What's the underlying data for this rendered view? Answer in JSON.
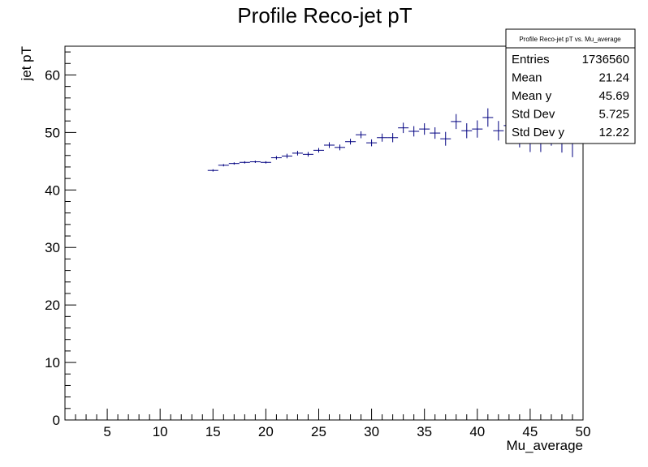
{
  "chart_data": {
    "type": "scatter",
    "title": "Profile Reco-jet pT",
    "xlabel": "Mu_average",
    "ylabel": "jet pT",
    "xlim": [
      1,
      50
    ],
    "ylim": [
      0,
      65
    ],
    "x_ticks": [
      5,
      10,
      15,
      20,
      25,
      30,
      35,
      40,
      45,
      50
    ],
    "y_ticks": [
      0,
      10,
      20,
      30,
      40,
      50,
      60
    ],
    "x_tick_labels": [
      "5",
      "10",
      "15",
      "20",
      "25",
      "30",
      "35",
      "40",
      "45",
      "50"
    ],
    "y_tick_labels": [
      "0",
      "10",
      "20",
      "30",
      "40",
      "50",
      "60"
    ],
    "grid": false,
    "series": [
      {
        "color": "#000080",
        "points": [
          {
            "x": 15.0,
            "y": 43.4,
            "err": 0.2
          },
          {
            "x": 16.0,
            "y": 44.3,
            "err": 0.2
          },
          {
            "x": 17.0,
            "y": 44.6,
            "err": 0.2
          },
          {
            "x": 18.0,
            "y": 44.8,
            "err": 0.2
          },
          {
            "x": 19.0,
            "y": 44.9,
            "err": 0.2
          },
          {
            "x": 20.0,
            "y": 44.8,
            "err": 0.2
          },
          {
            "x": 21.0,
            "y": 45.6,
            "err": 0.3
          },
          {
            "x": 22.0,
            "y": 45.9,
            "err": 0.4
          },
          {
            "x": 23.0,
            "y": 46.4,
            "err": 0.4
          },
          {
            "x": 24.0,
            "y": 46.2,
            "err": 0.4
          },
          {
            "x": 25.0,
            "y": 46.9,
            "err": 0.4
          },
          {
            "x": 26.0,
            "y": 47.8,
            "err": 0.5
          },
          {
            "x": 27.0,
            "y": 47.4,
            "err": 0.5
          },
          {
            "x": 28.0,
            "y": 48.4,
            "err": 0.5
          },
          {
            "x": 29.0,
            "y": 49.6,
            "err": 0.6
          },
          {
            "x": 30.0,
            "y": 48.2,
            "err": 0.6
          },
          {
            "x": 31.0,
            "y": 49.1,
            "err": 0.7
          },
          {
            "x": 32.0,
            "y": 49.1,
            "err": 0.8
          },
          {
            "x": 33.0,
            "y": 50.8,
            "err": 0.9
          },
          {
            "x": 34.0,
            "y": 50.2,
            "err": 0.9
          },
          {
            "x": 35.0,
            "y": 50.6,
            "err": 1.0
          },
          {
            "x": 36.0,
            "y": 49.9,
            "err": 1.0
          },
          {
            "x": 37.0,
            "y": 48.9,
            "err": 1.2
          },
          {
            "x": 38.0,
            "y": 51.9,
            "err": 1.3
          },
          {
            "x": 39.0,
            "y": 50.3,
            "err": 1.3
          },
          {
            "x": 40.0,
            "y": 50.6,
            "err": 1.5
          },
          {
            "x": 41.0,
            "y": 52.6,
            "err": 1.6
          },
          {
            "x": 42.0,
            "y": 50.3,
            "err": 1.7
          },
          {
            "x": 43.0,
            "y": 51.2,
            "err": 1.8
          },
          {
            "x": 44.0,
            "y": 49.4,
            "err": 2.0
          },
          {
            "x": 45.0,
            "y": 48.6,
            "err": 2.0
          },
          {
            "x": 46.0,
            "y": 48.9,
            "err": 2.3
          },
          {
            "x": 47.0,
            "y": 50.2,
            "err": 2.5
          },
          {
            "x": 48.0,
            "y": 49.0,
            "err": 2.5
          },
          {
            "x": 49.0,
            "y": 48.2,
            "err": 2.5
          }
        ]
      }
    ],
    "stats_box": {
      "title": "Profile Reco-jet pT vs. Mu_average",
      "rows": [
        {
          "label": "Entries",
          "value": "1736560"
        },
        {
          "label": "Mean",
          "value": "21.24"
        },
        {
          "label": "Mean y",
          "value": "45.69"
        },
        {
          "label": "Std Dev",
          "value": "5.725"
        },
        {
          "label": "Std Dev y",
          "value": "12.22"
        }
      ]
    }
  }
}
